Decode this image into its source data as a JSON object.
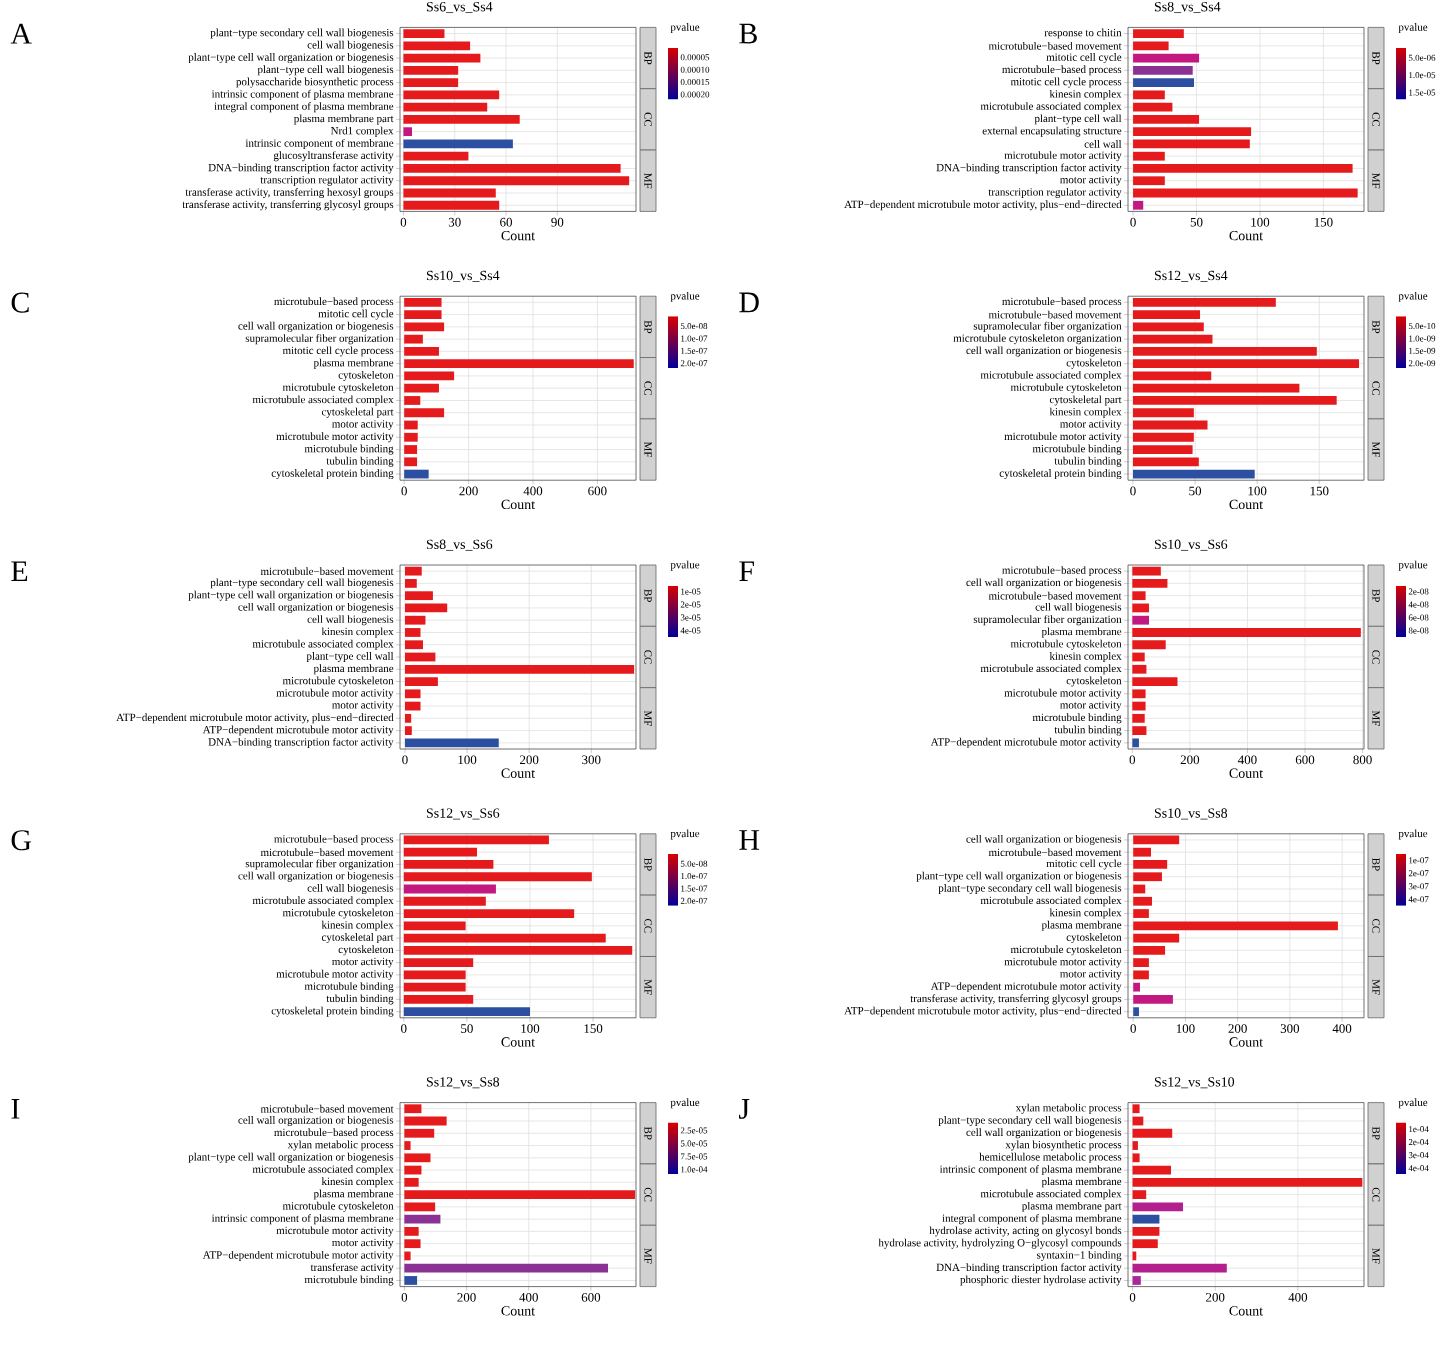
{
  "chart_data": [
    {
      "type": "bar",
      "orientation": "horizontal",
      "title": "Ss6_vs_Ss4",
      "xlabel": "Count",
      "clabel": "pvalue",
      "annotations": [
        "A",
        "BP",
        "CC",
        "MF"
      ],
      "grid": true,
      "categories": [
        "plant−type secondary cell wall biogenesis",
        "cell wall biogenesis",
        "plant−type cell wall organization or biogenesis",
        "plant−type cell wall biogenesis",
        "polysaccharide biosynthetic process",
        "intrinsic component of plasma membrane",
        "integral component of plasma membrane",
        "plasma membrane part",
        "Nrd1 complex",
        "intrinsic component of membrane",
        "glucosyltransferase activity",
        "DNA−binding transcription factor activity",
        "transcription regulator activity",
        "transferase activity, transferring hexosyl groups",
        "transferase activity, transferring glycosyl groups"
      ],
      "values": [
        24,
        39,
        45,
        32,
        32,
        56,
        49,
        68,
        5,
        64,
        38,
        127,
        132,
        54,
        56
      ],
      "colors": [
        "#e41a1c",
        "#e41a1c",
        "#e41a1c",
        "#e41a1c",
        "#e41a1c",
        "#e41a1c",
        "#e41a1c",
        "#e41a1c",
        "#c2187f",
        "#2d4fa2",
        "#e41a1c",
        "#e41a1c",
        "#e41a1c",
        "#e41a1c",
        "#e41a1c"
      ],
      "xlim": [
        -2,
        136
      ],
      "xticks": [
        0,
        30,
        60,
        90
      ],
      "clim": [
        1e-05,
        0.00022
      ],
      "cticks": [
        {
          "value": 5e-05,
          "label": "0.00005"
        },
        {
          "value": 0.0001,
          "label": "0.00010"
        },
        {
          "value": 0.00015,
          "label": "0.00015"
        },
        {
          "value": 0.0002,
          "label": "0.00020"
        }
      ]
    },
    {
      "type": "bar",
      "orientation": "horizontal",
      "title": "Ss8_vs_Ss4",
      "xlabel": "Count",
      "clabel": "pvalue",
      "annotations": [
        "B",
        "BP",
        "CC",
        "MF"
      ],
      "grid": true,
      "categories": [
        "response to chitin",
        "microtubule−based movement",
        "mitotic cell cycle",
        "microtubule−based process",
        "mitotic cell cycle process",
        "kinesin complex",
        "microtubule associated complex",
        "plant−type cell wall",
        "external encapsulating structure",
        "cell wall",
        "microtubule motor activity",
        "DNA−binding transcription factor activity",
        "motor activity",
        "transcription regulator activity",
        "ATP−dependent microtubule motor activity, plus−end−directed"
      ],
      "values": [
        40,
        28,
        52,
        47,
        48,
        25,
        31,
        52,
        93,
        92,
        25,
        173,
        25,
        177,
        8
      ],
      "colors": [
        "#e41a1c",
        "#e41a1c",
        "#c2187f",
        "#8a3193",
        "#2d4fa2",
        "#e41a1c",
        "#e41a1c",
        "#e41a1c",
        "#e41a1c",
        "#e41a1c",
        "#e41a1c",
        "#e41a1c",
        "#e41a1c",
        "#e41a1c",
        "#c2187f"
      ],
      "xlim": [
        -4,
        182
      ],
      "xticks": [
        0,
        50,
        100,
        150
      ],
      "clim": [
        2e-06,
        1.7e-05
      ],
      "cticks": [
        {
          "value": 5e-06,
          "label": "5.0e-06"
        },
        {
          "value": 1e-05,
          "label": "1.0e-05"
        },
        {
          "value": 1.5e-05,
          "label": "1.5e-05"
        }
      ]
    },
    {
      "type": "bar",
      "orientation": "horizontal",
      "title": "Ss10_vs_Ss4",
      "xlabel": "Count",
      "clabel": "pvalue",
      "annotations": [
        "C",
        "BP",
        "CC",
        "MF"
      ],
      "grid": true,
      "categories": [
        "microtubule−based process",
        "mitotic cell cycle",
        "cell wall organization or biogenesis",
        "supramolecular fiber organization",
        "mitotic cell cycle process",
        "plasma membrane",
        "cytoskeleton",
        "microtubule cytoskeleton",
        "microtubule associated complex",
        "cytoskeletal part",
        "motor activity",
        "microtubule motor activity",
        "microtubule binding",
        "tubulin binding",
        "cytoskeletal protein binding"
      ],
      "values": [
        116,
        116,
        124,
        58,
        108,
        713,
        155,
        108,
        50,
        124,
        42,
        42,
        40,
        40,
        76
      ],
      "colors": [
        "#e41a1c",
        "#e41a1c",
        "#e41a1c",
        "#e41a1c",
        "#e41a1c",
        "#e41a1c",
        "#e41a1c",
        "#e41a1c",
        "#e41a1c",
        "#e41a1c",
        "#e41a1c",
        "#e41a1c",
        "#e41a1c",
        "#e41a1c",
        "#2d4fa2"
      ],
      "xlim": [
        -13,
        720
      ],
      "xticks": [
        0,
        200,
        400,
        600
      ],
      "clim": [
        1e-08,
        2.2e-07
      ],
      "cticks": [
        {
          "value": 5e-08,
          "label": "5.0e-08"
        },
        {
          "value": 1e-07,
          "label": "1.0e-07"
        },
        {
          "value": 1.5e-07,
          "label": "1.5e-07"
        },
        {
          "value": 2e-07,
          "label": "2.0e-07"
        }
      ]
    },
    {
      "type": "bar",
      "orientation": "horizontal",
      "title": "Ss12_vs_Ss4",
      "xlabel": "Count",
      "clabel": "pvalue",
      "annotations": [
        "D",
        "BP",
        "CC",
        "MF"
      ],
      "grid": true,
      "categories": [
        "microtubule−based process",
        "microtubule−based movement",
        "supramolecular fiber organization",
        "microtubule cytoskeleton organization",
        "cell wall organization or biogenesis",
        "cytoskeleton",
        "microtubule associated complex",
        "microtubule cytoskeleton",
        "cytoskeletal part",
        "kinesin complex",
        "motor activity",
        "microtubule motor activity",
        "microtubule binding",
        "tubulin binding",
        "cytoskeletal protein binding"
      ],
      "values": [
        115,
        54,
        57,
        64,
        148,
        182,
        63,
        134,
        164,
        49,
        60,
        49,
        48,
        53,
        98
      ],
      "colors": [
        "#e41a1c",
        "#e41a1c",
        "#e41a1c",
        "#e41a1c",
        "#e41a1c",
        "#e41a1c",
        "#e41a1c",
        "#e41a1c",
        "#e41a1c",
        "#e41a1c",
        "#e41a1c",
        "#e41a1c",
        "#e41a1c",
        "#e41a1c",
        "#2d4fa2"
      ],
      "xlim": [
        -4,
        186
      ],
      "xticks": [
        0,
        50,
        100,
        150
      ],
      "clim": [
        1e-10,
        2.2e-09
      ],
      "cticks": [
        {
          "value": 5e-10,
          "label": "5.0e-10"
        },
        {
          "value": 1e-09,
          "label": "1.0e-09"
        },
        {
          "value": 1.5e-09,
          "label": "1.5e-09"
        },
        {
          "value": 2e-09,
          "label": "2.0e-09"
        }
      ]
    },
    {
      "type": "bar",
      "orientation": "horizontal",
      "title": "Ss8_vs_Ss6",
      "xlabel": "Count",
      "clabel": "pvalue",
      "annotations": [
        "E",
        "BP",
        "CC",
        "MF"
      ],
      "grid": true,
      "categories": [
        "microtubule−based movement",
        "plant−type secondary cell wall biogenesis",
        "plant−type cell wall organization or biogenesis",
        "cell wall organization or biogenesis",
        "cell wall biogenesis",
        "kinesin complex",
        "microtubule associated complex",
        "plant−type cell wall",
        "plasma membrane",
        "microtubule cytoskeleton",
        "microtubule motor activity",
        "motor activity",
        "ATP−dependent microtubule motor activity, plus−end−directed",
        "ATP−dependent microtubule motor activity",
        "DNA−binding transcription factor activity"
      ],
      "values": [
        27,
        19,
        45,
        68,
        33,
        25,
        29,
        49,
        369,
        53,
        25,
        25,
        10,
        11,
        151
      ],
      "colors": [
        "#e41a1c",
        "#e41a1c",
        "#e41a1c",
        "#e41a1c",
        "#e41a1c",
        "#e41a1c",
        "#e41a1c",
        "#e41a1c",
        "#e41a1c",
        "#e41a1c",
        "#e41a1c",
        "#e41a1c",
        "#e41a1c",
        "#e41a1c",
        "#2d4fa2"
      ],
      "xlim": [
        -8,
        372
      ],
      "xticks": [
        0,
        100,
        200,
        300
      ],
      "clim": [
        5e-06,
        4.5e-05
      ],
      "cticks": [
        {
          "value": 1e-05,
          "label": "1e-05"
        },
        {
          "value": 2e-05,
          "label": "2e-05"
        },
        {
          "value": 3e-05,
          "label": "3e-05"
        },
        {
          "value": 4e-05,
          "label": "4e-05"
        }
      ]
    },
    {
      "type": "bar",
      "orientation": "horizontal",
      "title": "Ss10_vs_Ss6",
      "xlabel": "Count",
      "clabel": "pvalue",
      "annotations": [
        "F",
        "BP",
        "CC",
        "MF"
      ],
      "grid": true,
      "categories": [
        "microtubule−based process",
        "cell wall organization or biogenesis",
        "microtubule−based movement",
        "cell wall biogenesis",
        "supramolecular fiber organization",
        "plasma membrane",
        "microtubule cytoskeleton",
        "kinesin complex",
        "microtubule associated complex",
        "cytoskeleton",
        "microtubule motor activity",
        "motor activity",
        "microtubule binding",
        "tubulin binding",
        "ATP−dependent microtubule motor activity"
      ],
      "values": [
        99,
        122,
        46,
        58,
        58,
        794,
        116,
        43,
        49,
        157,
        46,
        46,
        43,
        49,
        23
      ],
      "colors": [
        "#e41a1c",
        "#e41a1c",
        "#e41a1c",
        "#e41a1c",
        "#c2187f",
        "#e41a1c",
        "#e41a1c",
        "#e41a1c",
        "#e41a1c",
        "#e41a1c",
        "#e41a1c",
        "#e41a1c",
        "#e41a1c",
        "#e41a1c",
        "#2d4fa2"
      ],
      "xlim": [
        -15,
        805
      ],
      "xticks": [
        0,
        200,
        400,
        600,
        800
      ],
      "clim": [
        1e-08,
        9e-08
      ],
      "cticks": [
        {
          "value": 2e-08,
          "label": "2e-08"
        },
        {
          "value": 4e-08,
          "label": "4e-08"
        },
        {
          "value": 6e-08,
          "label": "6e-08"
        },
        {
          "value": 8e-08,
          "label": "8e-08"
        }
      ]
    },
    {
      "type": "bar",
      "orientation": "horizontal",
      "title": "Ss12_vs_Ss6",
      "xlabel": "Count",
      "clabel": "pvalue",
      "annotations": [
        "G",
        "BP",
        "CC",
        "MF"
      ],
      "grid": true,
      "categories": [
        "microtubule−based process",
        "microtubule−based movement",
        "supramolecular fiber organization",
        "cell wall organization or biogenesis",
        "cell wall biogenesis",
        "microtubule associated complex",
        "microtubule cytoskeleton",
        "kinesin complex",
        "cytoskeletal part",
        "cytoskeleton",
        "motor activity",
        "microtubule motor activity",
        "microtubule binding",
        "tubulin binding",
        "cytoskeletal protein binding"
      ],
      "values": [
        115,
        58,
        71,
        149,
        73,
        65,
        135,
        49,
        160,
        181,
        55,
        49,
        49,
        55,
        100
      ],
      "colors": [
        "#e41a1c",
        "#e41a1c",
        "#e41a1c",
        "#e41a1c",
        "#c2187f",
        "#e41a1c",
        "#e41a1c",
        "#e41a1c",
        "#e41a1c",
        "#e41a1c",
        "#e41a1c",
        "#e41a1c",
        "#e41a1c",
        "#e41a1c",
        "#2d4fa2"
      ],
      "xlim": [
        -3,
        184
      ],
      "xticks": [
        0,
        50,
        100,
        150
      ],
      "clim": [
        1e-08,
        2.2e-07
      ],
      "cticks": [
        {
          "value": 5e-08,
          "label": "5.0e-08"
        },
        {
          "value": 1e-07,
          "label": "1.0e-07"
        },
        {
          "value": 1.5e-07,
          "label": "1.5e-07"
        },
        {
          "value": 2e-07,
          "label": "2.0e-07"
        }
      ]
    },
    {
      "type": "bar",
      "orientation": "horizontal",
      "title": "Ss10_vs_Ss8",
      "xlabel": "Count",
      "clabel": "pvalue",
      "annotations": [
        "H",
        "BP",
        "CC",
        "MF"
      ],
      "grid": true,
      "categories": [
        "cell wall organization or biogenesis",
        "microtubule−based movement",
        "mitotic cell cycle",
        "plant−type cell wall organization or biogenesis",
        "plant−type secondary cell wall biogenesis",
        "microtubule associated complex",
        "kinesin complex",
        "plasma membrane",
        "cytoskeleton",
        "microtubule cytoskeleton",
        "microtubule motor activity",
        "motor activity",
        "ATP−dependent microtubule motor activity",
        "transferase activity, transferring glycosyl groups",
        "ATP−dependent microtubule motor activity, plus−end−directed"
      ],
      "values": [
        88,
        34,
        65,
        55,
        23,
        36,
        30,
        392,
        88,
        61,
        30,
        30,
        13,
        76,
        11
      ],
      "colors": [
        "#e41a1c",
        "#e41a1c",
        "#e41a1c",
        "#e41a1c",
        "#e41a1c",
        "#e41a1c",
        "#e41a1c",
        "#e41a1c",
        "#e41a1c",
        "#e41a1c",
        "#e41a1c",
        "#e41a1c",
        "#c2187f",
        "#c2187f",
        "#2d4fa2"
      ],
      "xlim": [
        -10,
        442
      ],
      "xticks": [
        0,
        100,
        200,
        300,
        400
      ],
      "clim": [
        5e-08,
        4.5e-07
      ],
      "cticks": [
        {
          "value": 1e-07,
          "label": "1e-07"
        },
        {
          "value": 2e-07,
          "label": "2e-07"
        },
        {
          "value": 3e-07,
          "label": "3e-07"
        },
        {
          "value": 4e-07,
          "label": "4e-07"
        }
      ]
    },
    {
      "type": "bar",
      "orientation": "horizontal",
      "title": "Ss12_vs_Ss8",
      "xlabel": "Count",
      "clabel": "pvalue",
      "annotations": [
        "I",
        "BP",
        "CC",
        "MF"
      ],
      "grid": true,
      "categories": [
        "microtubule−based movement",
        "cell wall organization or biogenesis",
        "microtubule−based process",
        "xylan metabolic process",
        "plant−type cell wall organization or biogenesis",
        "microtubule associated complex",
        "kinesin complex",
        "plasma membrane",
        "microtubule cytoskeleton",
        "intrinsic component of plasma membrane",
        "microtubule motor activity",
        "motor activity",
        "ATP−dependent microtubule motor activity",
        "transferase activity",
        "microtubule binding"
      ],
      "values": [
        55,
        136,
        96,
        20,
        84,
        55,
        46,
        742,
        99,
        116,
        46,
        52,
        20,
        655,
        41
      ],
      "colors": [
        "#e41a1c",
        "#e41a1c",
        "#e41a1c",
        "#e41a1c",
        "#e41a1c",
        "#e41a1c",
        "#e41a1c",
        "#e41a1c",
        "#e41a1c",
        "#8a3193",
        "#e41a1c",
        "#e41a1c",
        "#e41a1c",
        "#8a3193",
        "#2d4fa2"
      ],
      "xlim": [
        -14,
        745
      ],
      "xticks": [
        0,
        200,
        400,
        600
      ],
      "clim": [
        1e-05,
        0.00011
      ],
      "cticks": [
        {
          "value": 2.5e-05,
          "label": "2.5e-05"
        },
        {
          "value": 5e-05,
          "label": "5.0e-05"
        },
        {
          "value": 7.5e-05,
          "label": "7.5e-05"
        },
        {
          "value": 0.0001,
          "label": "1.0e-04"
        }
      ]
    },
    {
      "type": "bar",
      "orientation": "horizontal",
      "title": "Ss12_vs_Ss10",
      "xlabel": "Count",
      "clabel": "pvalue",
      "annotations": [
        "J",
        "BP",
        "CC",
        "MF"
      ],
      "grid": true,
      "categories": [
        "xylan metabolic process",
        "plant−type secondary cell wall biogenesis",
        "cell wall organization or biogenesis",
        "xylan biosynthetic process",
        "hemicellulose metabolic process",
        "intrinsic component of plasma membrane",
        "plasma membrane",
        "microtubule associated complex",
        "plasma membrane part",
        "integral component of plasma membrane",
        "hydrolase activity, acting on glycosyl bonds",
        "hydrolase activity, hydrolyzing O−glycosyl compounds",
        "syntaxin−1 binding",
        "DNA−binding transcription factor activity",
        "phosphoric diester hydrolase activity"
      ],
      "values": [
        17,
        26,
        96,
        13,
        17,
        93,
        556,
        33,
        122,
        65,
        65,
        61,
        9,
        228,
        20
      ],
      "colors": [
        "#e41a1c",
        "#e41a1c",
        "#e41a1c",
        "#e41a1c",
        "#e41a1c",
        "#e41a1c",
        "#e41a1c",
        "#e41a1c",
        "#b3208d",
        "#2d4fa2",
        "#e41a1c",
        "#e41a1c",
        "#e41a1c",
        "#b3208d",
        "#a8279a"
      ],
      "xlim": [
        -11,
        560
      ],
      "xticks": [
        0,
        200,
        400
      ],
      "clim": [
        5e-05,
        0.00045
      ],
      "cticks": [
        {
          "value": 0.0001,
          "label": "1e-04"
        },
        {
          "value": 0.0002,
          "label": "2e-04"
        },
        {
          "value": 0.0003,
          "label": "3e-04"
        },
        {
          "value": 0.0004,
          "label": "4e-04"
        }
      ]
    }
  ]
}
